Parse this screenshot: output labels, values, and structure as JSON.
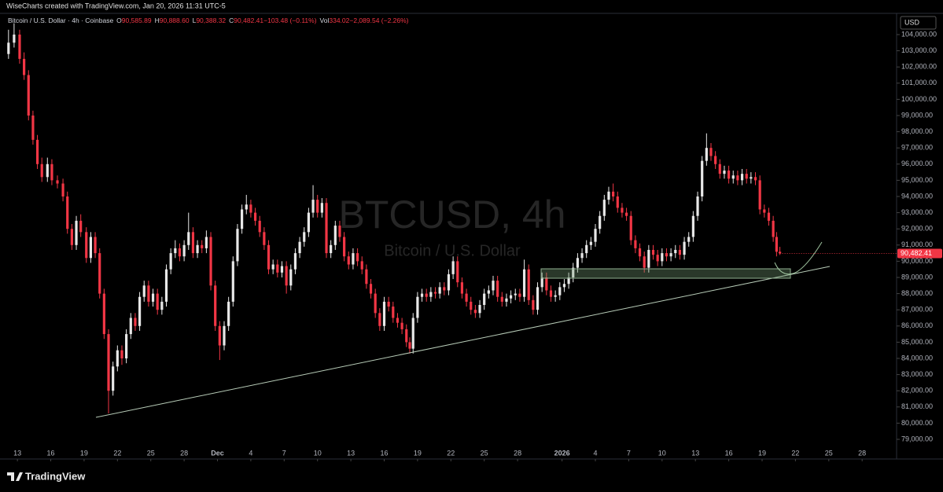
{
  "header": "WiseCharts created with TradingView.com, Jan 20, 2026 11:31 UTC-5",
  "footer": "TradingView",
  "currency_button": "USD",
  "chart_data": {
    "type": "candlestick",
    "symbol": "Bitcoin / U.S. Dollar · 4h · Coinbase",
    "legend": [
      {
        "label": "O",
        "value": "90,585.89"
      },
      {
        "label": "H",
        "value": "90,888.60"
      },
      {
        "label": "L",
        "value": "90,388.32"
      },
      {
        "label": "C",
        "value": "90,482.41"
      },
      {
        "label": "",
        "value": "−103.48 (−0.11%)"
      },
      {
        "label": "Vol",
        "value": "334.02"
      },
      {
        "label": "",
        "value": "−2,089.54 (−2.26%)"
      }
    ],
    "watermark_title": "BTCUSD, 4h",
    "watermark_subtitle": "Bitcoin / U.S. Dollar",
    "last_price_label": "90,482.41",
    "up_color": "#e8e8e8",
    "down_color": "#f23645",
    "xlim": [
      -1,
      79.1
    ],
    "xticks": [
      {
        "value": 0,
        "label": "13"
      },
      {
        "value": 3,
        "label": "16"
      },
      {
        "value": 6,
        "label": "19"
      },
      {
        "value": 9,
        "label": "22"
      },
      {
        "value": 12,
        "label": "25"
      },
      {
        "value": 15,
        "label": "28"
      },
      {
        "value": 18,
        "label": "Dec"
      },
      {
        "value": 21,
        "label": "4"
      },
      {
        "value": 24,
        "label": "7"
      },
      {
        "value": 27,
        "label": "10"
      },
      {
        "value": 30,
        "label": "13"
      },
      {
        "value": 33,
        "label": "16"
      },
      {
        "value": 36,
        "label": "19"
      },
      {
        "value": 39,
        "label": "22"
      },
      {
        "value": 42,
        "label": "25"
      },
      {
        "value": 45,
        "label": "28"
      },
      {
        "value": 49,
        "label": "2026"
      },
      {
        "value": 52,
        "label": "4"
      },
      {
        "value": 55,
        "label": "7"
      },
      {
        "value": 58,
        "label": "10"
      },
      {
        "value": 61,
        "label": "13"
      },
      {
        "value": 64,
        "label": "16"
      },
      {
        "value": 67,
        "label": "19"
      },
      {
        "value": 70,
        "label": "22"
      },
      {
        "value": 73,
        "label": "25"
      },
      {
        "value": 76,
        "label": "28"
      }
    ],
    "ylim": [
      77980,
      105165
    ],
    "yticks": [
      {
        "value": 79000,
        "label": "79,000.00"
      },
      {
        "value": 80000,
        "label": "80,000.00"
      },
      {
        "value": 81000,
        "label": "81,000.00"
      },
      {
        "value": 82000,
        "label": "82,000.00"
      },
      {
        "value": 83000,
        "label": "83,000.00"
      },
      {
        "value": 84000,
        "label": "84,000.00"
      },
      {
        "value": 85000,
        "label": "85,000.00"
      },
      {
        "value": 86000,
        "label": "86,000.00"
      },
      {
        "value": 87000,
        "label": "87,000.00"
      },
      {
        "value": 88000,
        "label": "88,000.00"
      },
      {
        "value": 89000,
        "label": "89,000.00"
      },
      {
        "value": 90000,
        "label": "90,000.00"
      },
      {
        "value": 91000,
        "label": "91,000.00"
      },
      {
        "value": 92000,
        "label": "92,000.00"
      },
      {
        "value": 93000,
        "label": "93,000.00"
      },
      {
        "value": 94000,
        "label": "94,000.00"
      },
      {
        "value": 95000,
        "label": "95,000.00"
      },
      {
        "value": 96000,
        "label": "96,000.00"
      },
      {
        "value": 97000,
        "label": "97,000.00"
      },
      {
        "value": 98000,
        "label": "98,000.00"
      },
      {
        "value": 99000,
        "label": "99,000.00"
      },
      {
        "value": 100000,
        "label": "100,000.00"
      },
      {
        "value": 101000,
        "label": "101,000.00"
      },
      {
        "value": 102000,
        "label": "102,000.00"
      },
      {
        "value": 103000,
        "label": "103,000.00"
      },
      {
        "value": 104000,
        "label": "104,000.00"
      }
    ],
    "x": [
      -0.8,
      -0.3,
      0.2,
      0.6,
      1.0,
      1.4,
      1.8,
      2.2,
      2.7,
      3.1,
      3.6,
      4.1,
      4.5,
      4.9,
      5.3,
      5.7,
      6.2,
      6.6,
      7.0,
      7.4,
      7.8,
      8.2,
      8.6,
      9.0,
      9.4,
      9.8,
      10.2,
      10.6,
      11.0,
      11.4,
      11.8,
      12.2,
      12.6,
      13.0,
      13.4,
      13.8,
      14.2,
      14.6,
      15.0,
      15.4,
      15.8,
      16.2,
      16.6,
      17.0,
      17.4,
      17.8,
      18.2,
      18.6,
      19.0,
      19.4,
      19.8,
      20.2,
      20.6,
      21.0,
      21.4,
      21.8,
      22.2,
      22.6,
      23.0,
      23.4,
      23.8,
      24.2,
      24.6,
      25.0,
      25.4,
      25.8,
      26.2,
      26.6,
      27.0,
      27.4,
      27.8,
      28.2,
      28.6,
      29.0,
      29.4,
      29.8,
      30.2,
      30.6,
      31.0,
      31.4,
      31.8,
      32.2,
      32.6,
      33.0,
      33.4,
      33.8,
      34.2,
      34.6,
      35.0,
      35.3,
      35.6,
      36.0,
      36.4,
      36.8,
      37.2,
      37.6,
      38.0,
      38.4,
      38.8,
      39.2,
      39.6,
      40.0,
      40.4,
      40.8,
      41.2,
      41.6,
      42.0,
      42.4,
      42.8,
      43.2,
      43.6,
      44.0,
      44.4,
      44.8,
      45.2,
      45.6,
      46.0,
      46.4,
      46.8,
      47.2,
      47.6,
      48.0,
      48.4,
      48.8,
      49.2,
      49.6,
      50.0,
      50.4,
      50.8,
      51.2,
      51.6,
      52.0,
      52.4,
      52.8,
      53.2,
      53.6,
      54.0,
      54.4,
      54.8,
      55.2,
      55.6,
      56.0,
      56.4,
      56.8,
      57.2,
      57.6,
      58.0,
      58.4,
      58.8,
      59.2,
      59.6,
      60.0,
      60.4,
      60.8,
      61.2,
      61.6,
      62.0,
      62.4,
      62.8,
      63.2,
      63.6,
      64.0,
      64.4,
      64.8,
      65.2,
      65.6,
      66.0,
      66.4,
      66.8,
      67.2,
      67.6,
      68.0,
      68.3,
      68.6
    ],
    "ohlc": [
      [
        102800,
        104300,
        102500,
        103500
      ],
      [
        103500,
        104700,
        103200,
        104000
      ],
      [
        104000,
        104300,
        102200,
        102500
      ],
      [
        102500,
        102900,
        101200,
        101500
      ],
      [
        101500,
        101800,
        98700,
        99000
      ],
      [
        99000,
        99300,
        97200,
        97500
      ],
      [
        97500,
        97800,
        95700,
        96000
      ],
      [
        96000,
        96400,
        94900,
        95200
      ],
      [
        95200,
        96400,
        94900,
        96000
      ],
      [
        96000,
        96300,
        94700,
        95000
      ],
      [
        95000,
        95300,
        94500,
        94800
      ],
      [
        94800,
        95100,
        93700,
        94000
      ],
      [
        94000,
        94300,
        91700,
        92000
      ],
      [
        92000,
        92300,
        90700,
        91000
      ],
      [
        91000,
        92800,
        90700,
        92500
      ],
      [
        92500,
        92900,
        91500,
        91800
      ],
      [
        91800,
        92100,
        89900,
        90200
      ],
      [
        90200,
        91800,
        89900,
        91500
      ],
      [
        91500,
        91800,
        90200,
        90500
      ],
      [
        90500,
        90800,
        87700,
        88000
      ],
      [
        88000,
        88300,
        85200,
        85500
      ],
      [
        85500,
        85800,
        80600,
        82000
      ],
      [
        82000,
        83800,
        81700,
        83500
      ],
      [
        83500,
        84800,
        83200,
        84500
      ],
      [
        84500,
        84800,
        83600,
        84000
      ],
      [
        84000,
        85800,
        83700,
        85500
      ],
      [
        85500,
        86800,
        85200,
        86500
      ],
      [
        86500,
        86800,
        85700,
        86000
      ],
      [
        86000,
        88100,
        85700,
        87800
      ],
      [
        87800,
        88800,
        87500,
        88500
      ],
      [
        88500,
        88800,
        87200,
        87500
      ],
      [
        87500,
        88300,
        87200,
        88000
      ],
      [
        88000,
        88300,
        86700,
        87000
      ],
      [
        87000,
        87800,
        86700,
        87500
      ],
      [
        87500,
        89800,
        87200,
        89500
      ],
      [
        89500,
        90800,
        89200,
        90500
      ],
      [
        90500,
        91300,
        90200,
        90800
      ],
      [
        90800,
        91100,
        90000,
        90300
      ],
      [
        90300,
        91300,
        90000,
        91000
      ],
      [
        91000,
        93000,
        90700,
        91800
      ],
      [
        91800,
        92100,
        90200,
        90500
      ],
      [
        90500,
        91300,
        90200,
        91000
      ],
      [
        91000,
        91300,
        90500,
        90800
      ],
      [
        90800,
        91900,
        90500,
        91500
      ],
      [
        91500,
        91800,
        88200,
        88500
      ],
      [
        88500,
        88800,
        85700,
        86000
      ],
      [
        86000,
        86300,
        83900,
        84800
      ],
      [
        84800,
        86300,
        84500,
        86000
      ],
      [
        86000,
        87800,
        85700,
        87500
      ],
      [
        87500,
        90300,
        87200,
        90000
      ],
      [
        90000,
        92300,
        89700,
        92000
      ],
      [
        92000,
        93500,
        91700,
        93200
      ],
      [
        93200,
        94100,
        92900,
        93500
      ],
      [
        93500,
        93800,
        92700,
        93000
      ],
      [
        93000,
        93300,
        92200,
        92500
      ],
      [
        92500,
        92800,
        91500,
        91800
      ],
      [
        91800,
        92100,
        90700,
        91000
      ],
      [
        91000,
        91300,
        89200,
        89500
      ],
      [
        89500,
        90100,
        89200,
        89800
      ],
      [
        89800,
        90100,
        89000,
        89300
      ],
      [
        89300,
        90000,
        89000,
        89700
      ],
      [
        89700,
        90000,
        88000,
        88500
      ],
      [
        88500,
        89800,
        88200,
        89500
      ],
      [
        89500,
        90800,
        89200,
        90500
      ],
      [
        90500,
        91500,
        90200,
        91200
      ],
      [
        91200,
        92100,
        90900,
        91800
      ],
      [
        91800,
        93300,
        91500,
        93000
      ],
      [
        93000,
        94700,
        92700,
        93800
      ],
      [
        93800,
        94100,
        92700,
        93000
      ],
      [
        93000,
        93900,
        92700,
        93600
      ],
      [
        93600,
        93900,
        90200,
        90500
      ],
      [
        90500,
        91300,
        90200,
        91000
      ],
      [
        91000,
        92500,
        90700,
        92200
      ],
      [
        92200,
        92500,
        91200,
        91500
      ],
      [
        91500,
        91800,
        90000,
        90300
      ],
      [
        90300,
        90600,
        89500,
        89800
      ],
      [
        89800,
        90800,
        89500,
        90500
      ],
      [
        90500,
        90800,
        89700,
        90000
      ],
      [
        90000,
        90300,
        89200,
        89500
      ],
      [
        89500,
        89800,
        88300,
        88600
      ],
      [
        88600,
        88900,
        87700,
        88000
      ],
      [
        88000,
        88300,
        86500,
        86800
      ],
      [
        86800,
        87100,
        85700,
        86000
      ],
      [
        86000,
        87800,
        85700,
        87500
      ],
      [
        87500,
        87800,
        86900,
        87200
      ],
      [
        87200,
        87500,
        86200,
        86500
      ],
      [
        86500,
        86800,
        85900,
        86200
      ],
      [
        86200,
        86500,
        85500,
        85800
      ],
      [
        85800,
        86100,
        84700,
        85000
      ],
      [
        85000,
        85300,
        84300,
        84600
      ],
      [
        84600,
        86800,
        84300,
        86500
      ],
      [
        86500,
        88100,
        86200,
        87800
      ],
      [
        87800,
        88300,
        87500,
        88000
      ],
      [
        88000,
        88300,
        87500,
        87800
      ],
      [
        87800,
        88400,
        87500,
        88100
      ],
      [
        88100,
        88400,
        87700,
        88000
      ],
      [
        88000,
        88700,
        87700,
        88400
      ],
      [
        88400,
        88700,
        87900,
        88200
      ],
      [
        88200,
        89500,
        87900,
        89200
      ],
      [
        89200,
        90300,
        88900,
        90000
      ],
      [
        90000,
        90300,
        88400,
        88700
      ],
      [
        88700,
        89000,
        87700,
        88000
      ],
      [
        88000,
        88300,
        87200,
        87500
      ],
      [
        87500,
        87800,
        86700,
        87000
      ],
      [
        87000,
        87300,
        86500,
        86800
      ],
      [
        86800,
        87600,
        86500,
        87300
      ],
      [
        87300,
        88300,
        87000,
        88000
      ],
      [
        88000,
        88500,
        87700,
        88200
      ],
      [
        88200,
        89100,
        87900,
        88800
      ],
      [
        88800,
        89100,
        87500,
        87800
      ],
      [
        87800,
        88100,
        87200,
        87500
      ],
      [
        87500,
        88000,
        87200,
        87700
      ],
      [
        87700,
        88200,
        87400,
        87900
      ],
      [
        87900,
        88300,
        87600,
        88000
      ],
      [
        88000,
        88300,
        87500,
        87800
      ],
      [
        87800,
        90100,
        87500,
        89500
      ],
      [
        89500,
        89800,
        87300,
        87600
      ],
      [
        87600,
        87900,
        86700,
        87000
      ],
      [
        87000,
        88700,
        86700,
        88400
      ],
      [
        88400,
        89300,
        88100,
        89000
      ],
      [
        89000,
        89300,
        87900,
        88200
      ],
      [
        88200,
        88500,
        87500,
        87800
      ],
      [
        87800,
        88200,
        87500,
        87900
      ],
      [
        87900,
        88700,
        87600,
        88400
      ],
      [
        88400,
        88900,
        88100,
        88600
      ],
      [
        88600,
        89300,
        88300,
        89000
      ],
      [
        89000,
        89900,
        88700,
        89600
      ],
      [
        89600,
        90500,
        89300,
        90200
      ],
      [
        90200,
        90800,
        89900,
        90500
      ],
      [
        90500,
        91300,
        90200,
        91000
      ],
      [
        91000,
        91500,
        90700,
        91200
      ],
      [
        91200,
        92300,
        90900,
        92000
      ],
      [
        92000,
        93100,
        91700,
        92800
      ],
      [
        92800,
        94100,
        92500,
        93800
      ],
      [
        93800,
        94600,
        93500,
        94300
      ],
      [
        94300,
        94800,
        93700,
        94000
      ],
      [
        94000,
        94300,
        93000,
        93300
      ],
      [
        93300,
        93600,
        92700,
        93000
      ],
      [
        93000,
        93300,
        92500,
        92800
      ],
      [
        92800,
        93100,
        91000,
        91300
      ],
      [
        91300,
        91600,
        90500,
        90800
      ],
      [
        90800,
        91100,
        90000,
        90300
      ],
      [
        90300,
        90600,
        89300,
        89600
      ],
      [
        89600,
        91000,
        89300,
        90700
      ],
      [
        90700,
        91000,
        90100,
        90400
      ],
      [
        90400,
        90700,
        89700,
        90000
      ],
      [
        90000,
        90800,
        89700,
        90500
      ],
      [
        90500,
        90800,
        90000,
        90300
      ],
      [
        90300,
        90800,
        90000,
        90500
      ],
      [
        90500,
        91000,
        90200,
        90700
      ],
      [
        90700,
        91000,
        90100,
        90400
      ],
      [
        90400,
        91500,
        90100,
        91200
      ],
      [
        91200,
        91800,
        90900,
        91500
      ],
      [
        91500,
        93100,
        91200,
        92800
      ],
      [
        92800,
        94300,
        92500,
        94000
      ],
      [
        94000,
        96500,
        93700,
        96200
      ],
      [
        96200,
        97900,
        95900,
        97000
      ],
      [
        97000,
        97300,
        96200,
        96500
      ],
      [
        96500,
        96800,
        95700,
        96000
      ],
      [
        96000,
        96300,
        95100,
        95400
      ],
      [
        95400,
        95900,
        95100,
        95600
      ],
      [
        95600,
        95900,
        94800,
        95100
      ],
      [
        95100,
        95600,
        94800,
        95300
      ],
      [
        95300,
        95600,
        94700,
        95000
      ],
      [
        95000,
        95700,
        94700,
        95400
      ],
      [
        95400,
        95700,
        94800,
        95100
      ],
      [
        95100,
        95500,
        94800,
        95200
      ],
      [
        95200,
        95500,
        94700,
        95000
      ],
      [
        95000,
        95300,
        92900,
        93200
      ],
      [
        93200,
        93500,
        92700,
        93000
      ],
      [
        93000,
        93300,
        92200,
        92500
      ],
      [
        92500,
        92800,
        91200,
        91500
      ],
      [
        91500,
        91800,
        90300,
        90585.89
      ],
      [
        90585.89,
        90888.6,
        90388.32,
        90482.41
      ]
    ]
  }
}
